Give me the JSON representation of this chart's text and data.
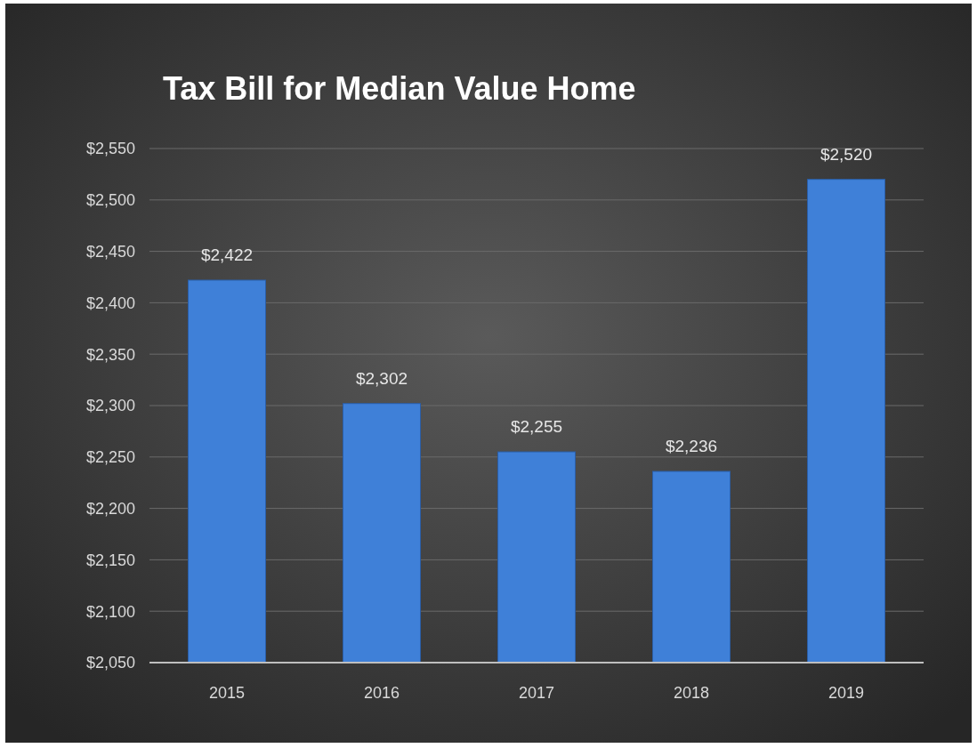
{
  "chart_data": {
    "type": "bar",
    "title": "Tax Bill for Median Value Home",
    "categories": [
      "2015",
      "2016",
      "2017",
      "2018",
      "2019"
    ],
    "values": [
      2422,
      2302,
      2255,
      2236,
      2520
    ],
    "value_labels": [
      "$2,422",
      "$2,302",
      "$2,255",
      "$2,236",
      "$2,520"
    ],
    "color": "#3f80d8",
    "ylim": [
      2050,
      2550
    ],
    "yticks": [
      {
        "value": 2050,
        "label": "$2,050"
      },
      {
        "value": 2100,
        "label": "$2,100"
      },
      {
        "value": 2150,
        "label": "$2,150"
      },
      {
        "value": 2200,
        "label": "$2,200"
      },
      {
        "value": 2250,
        "label": "$2,250"
      },
      {
        "value": 2300,
        "label": "$2,300"
      },
      {
        "value": 2350,
        "label": "$2,350"
      },
      {
        "value": 2400,
        "label": "$2,400"
      },
      {
        "value": 2450,
        "label": "$2,450"
      },
      {
        "value": 2500,
        "label": "$2,500"
      },
      {
        "value": 2550,
        "label": "$2,550"
      }
    ],
    "grid": "y"
  }
}
